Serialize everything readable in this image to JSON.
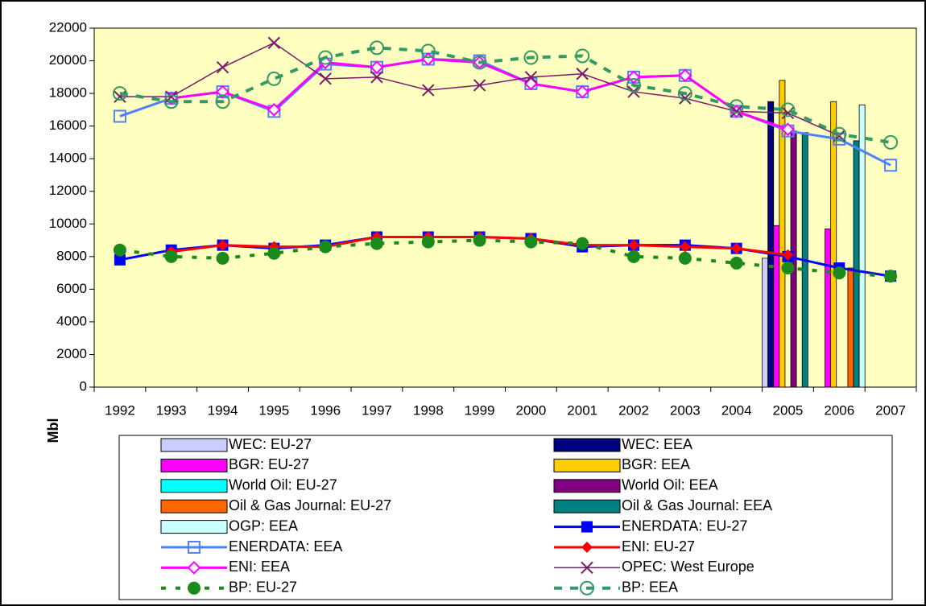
{
  "chart_data": {
    "type": "combo",
    "y_label": "Mbl",
    "categories": [
      "1992",
      "1993",
      "1994",
      "1995",
      "1996",
      "1997",
      "1998",
      "1999",
      "2000",
      "2001",
      "2002",
      "2003",
      "2004",
      "2005",
      "2006",
      "2007"
    ],
    "ylim": [
      0,
      22000
    ],
    "yticks": [
      0,
      2000,
      4000,
      6000,
      8000,
      10000,
      12000,
      14000,
      16000,
      18000,
      20000,
      22000
    ],
    "grid": false,
    "plot_background": "#ffffc0",
    "series": [
      {
        "name": "WEC: EU-27",
        "type": "bar",
        "color": "#ccccff",
        "values": [
          null,
          null,
          null,
          null,
          null,
          null,
          null,
          null,
          null,
          null,
          null,
          null,
          null,
          7900,
          null,
          null
        ]
      },
      {
        "name": "WEC: EEA",
        "type": "bar",
        "color": "#000080",
        "values": [
          null,
          null,
          null,
          null,
          null,
          null,
          null,
          null,
          null,
          null,
          null,
          null,
          null,
          17500,
          null,
          null
        ]
      },
      {
        "name": "BGR: EU-27",
        "type": "bar",
        "color": "#ff00ff",
        "values": [
          null,
          null,
          null,
          null,
          null,
          null,
          null,
          null,
          null,
          null,
          null,
          null,
          null,
          9900,
          9700,
          null
        ]
      },
      {
        "name": "BGR: EEA",
        "type": "bar",
        "color": "#ffcc00",
        "values": [
          null,
          null,
          null,
          null,
          null,
          null,
          null,
          null,
          null,
          null,
          null,
          null,
          null,
          18800,
          17500,
          null
        ]
      },
      {
        "name": "World Oil: EU-27",
        "type": "bar",
        "color": "#00ffff",
        "values": [
          null,
          null,
          null,
          null,
          null,
          null,
          null,
          null,
          null,
          null,
          null,
          null,
          null,
          null,
          null,
          null
        ]
      },
      {
        "name": "World Oil: EEA",
        "type": "bar",
        "color": "#800080",
        "values": [
          null,
          null,
          null,
          null,
          null,
          null,
          null,
          null,
          null,
          null,
          null,
          null,
          null,
          15700,
          null,
          null
        ]
      },
      {
        "name": "Oil & Gas Journal: EU-27",
        "type": "bar",
        "color": "#ff6600",
        "values": [
          null,
          null,
          null,
          null,
          null,
          null,
          null,
          null,
          null,
          null,
          null,
          null,
          null,
          null,
          7300,
          null
        ]
      },
      {
        "name": "Oil & Gas Journal: EEA",
        "type": "bar",
        "color": "#008080",
        "values": [
          null,
          null,
          null,
          null,
          null,
          null,
          null,
          null,
          null,
          null,
          null,
          null,
          null,
          15600,
          15100,
          null
        ]
      },
      {
        "name": "OGP: EEA",
        "type": "bar",
        "color": "#ccffff",
        "values": [
          null,
          null,
          null,
          null,
          null,
          null,
          null,
          null,
          null,
          null,
          null,
          null,
          null,
          null,
          17300,
          null
        ]
      },
      {
        "name": "ENERDATA: EU-27",
        "type": "line",
        "color": "#0000ff",
        "marker": "square",
        "dash": "solid",
        "values": [
          7800,
          8400,
          8700,
          8500,
          8700,
          9200,
          9200,
          9200,
          9100,
          8600,
          8700,
          8700,
          8500,
          8000,
          7300,
          6800
        ]
      },
      {
        "name": "ENERDATA: EEA",
        "type": "line",
        "color": "#4f81ff",
        "marker": "square-open",
        "dash": "solid",
        "values": [
          16600,
          17700,
          18100,
          16900,
          19800,
          19600,
          20100,
          20000,
          18600,
          18100,
          19000,
          19100,
          16900,
          15700,
          15200,
          13600
        ]
      },
      {
        "name": "ENI: EU-27",
        "type": "line",
        "color": "#ff0000",
        "marker": "diamond",
        "dash": "solid",
        "values": [
          null,
          8300,
          8700,
          8600,
          8600,
          9200,
          9200,
          9200,
          9100,
          8700,
          8700,
          8600,
          8500,
          8100,
          null,
          null
        ]
      },
      {
        "name": "ENI: EEA",
        "type": "line",
        "color": "#ff00ff",
        "marker": "diamond-open",
        "dash": "solid",
        "values": [
          null,
          17700,
          18100,
          17000,
          19900,
          19600,
          20100,
          19900,
          18600,
          18100,
          19000,
          19100,
          16900,
          15800,
          null,
          null
        ]
      },
      {
        "name": "OPEC: West Europe",
        "type": "line",
        "color": "#7a1a6a",
        "marker": "x",
        "dash": "thin",
        "values": [
          17800,
          17800,
          19600,
          21100,
          18900,
          19000,
          18200,
          18500,
          19000,
          19200,
          18100,
          17700,
          16900,
          16800,
          15400,
          null
        ]
      },
      {
        "name": "BP: EU-27",
        "type": "line",
        "color": "#1a8a1a",
        "marker": "circle",
        "dash": "dotted",
        "values": [
          8400,
          8000,
          7900,
          8200,
          8600,
          8800,
          8900,
          9000,
          8900,
          8800,
          8000,
          7900,
          7600,
          7300,
          7000,
          6800
        ]
      },
      {
        "name": "BP: EEA",
        "type": "line",
        "color": "#339966",
        "marker": "circle-open",
        "dash": "dashed",
        "values": [
          18000,
          17500,
          17500,
          18900,
          20200,
          20800,
          20600,
          19900,
          20200,
          20300,
          18500,
          18000,
          17200,
          17000,
          15500,
          15000
        ]
      }
    ]
  }
}
